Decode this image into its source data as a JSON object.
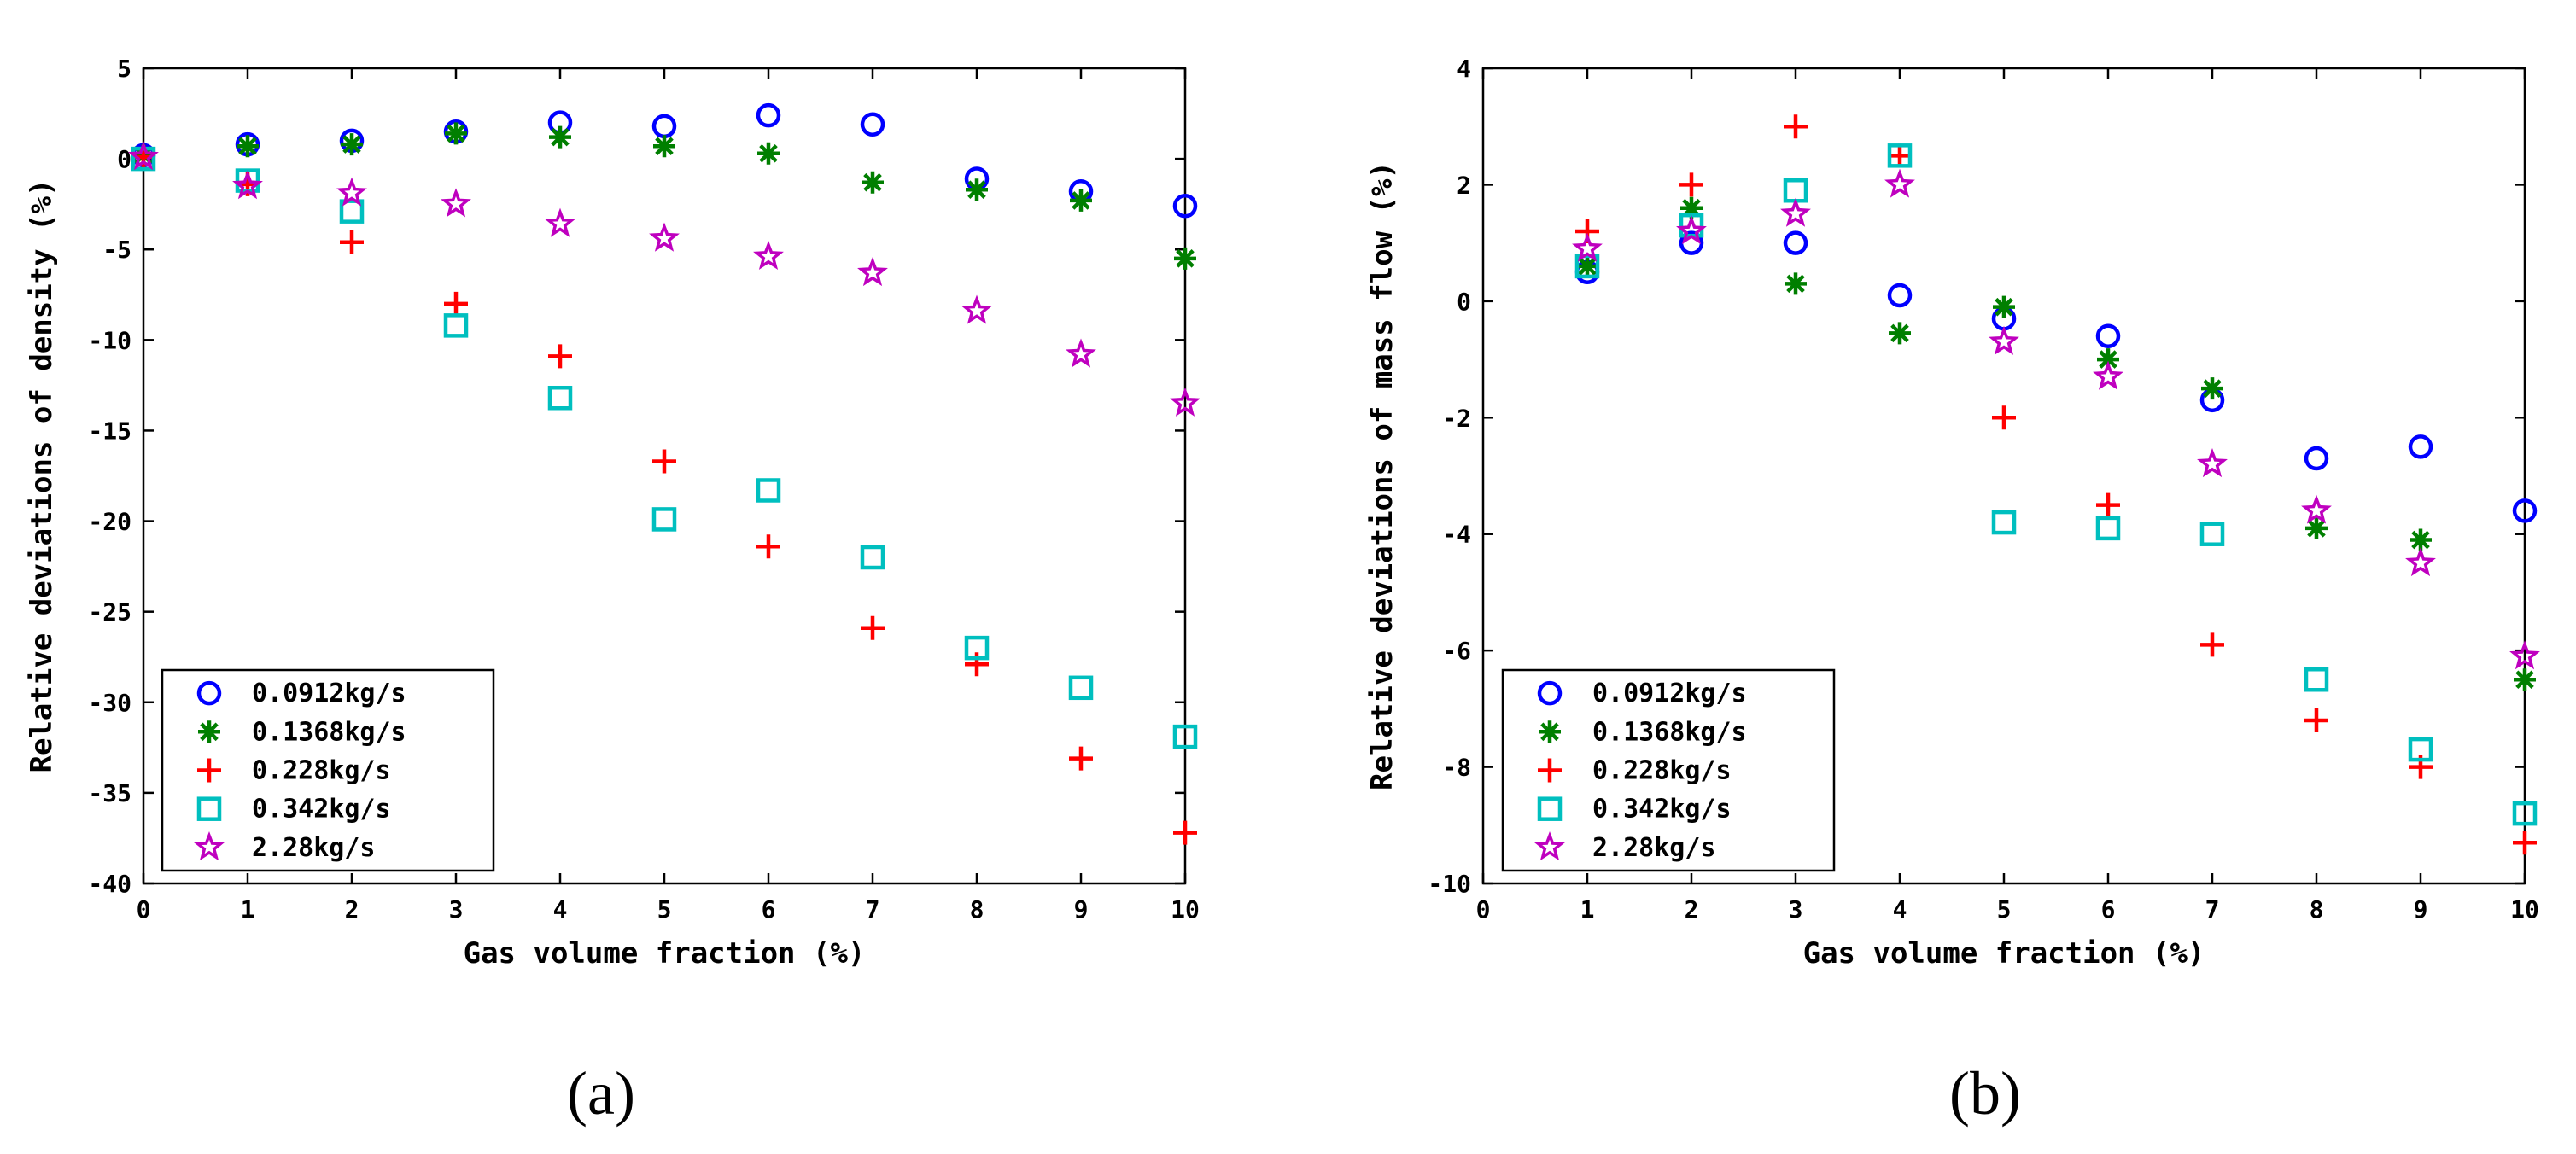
{
  "chart_data": [
    {
      "type": "scatter",
      "panel_label": "(a)",
      "title": "",
      "xlabel": "Gas volume fraction (%)",
      "ylabel": "Relative deviations of density (%)",
      "xlim": [
        0,
        10
      ],
      "ylim": [
        -40,
        5
      ],
      "xticks": [
        0,
        1,
        2,
        3,
        4,
        5,
        6,
        7,
        8,
        9,
        10
      ],
      "yticks": [
        -40,
        -35,
        -30,
        -25,
        -20,
        -15,
        -10,
        -5,
        0,
        5
      ],
      "grid": false,
      "legend_position": "bottom-left",
      "series": [
        {
          "name": "0.0912kg/s",
          "marker": "circle",
          "color": "#0000ff",
          "x": [
            0,
            1,
            2,
            3,
            4,
            5,
            6,
            7,
            8,
            9,
            10
          ],
          "y": [
            0.2,
            0.8,
            1.0,
            1.5,
            2.0,
            1.8,
            2.4,
            1.9,
            -1.1,
            -1.8,
            -2.6
          ]
        },
        {
          "name": "0.1368kg/s",
          "marker": "asterisk",
          "color": "#007f00",
          "x": [
            0,
            1,
            2,
            3,
            4,
            5,
            6,
            7,
            8,
            9,
            10
          ],
          "y": [
            0.2,
            0.7,
            0.8,
            1.4,
            1.2,
            0.7,
            0.3,
            -1.3,
            -1.7,
            -2.3,
            -5.5
          ]
        },
        {
          "name": "0.228kg/s",
          "marker": "plus",
          "color": "#ff0000",
          "x": [
            0,
            1,
            2,
            3,
            4,
            5,
            6,
            7,
            8,
            9,
            10
          ],
          "y": [
            0.1,
            -1.4,
            -4.6,
            -8.0,
            -10.9,
            -16.7,
            -21.4,
            -25.9,
            -27.9,
            -33.1,
            -37.2
          ]
        },
        {
          "name": "0.342kg/s",
          "marker": "square",
          "color": "#00bfbf",
          "x": [
            0,
            1,
            2,
            3,
            4,
            5,
            6,
            7,
            8,
            9,
            10
          ],
          "y": [
            0.0,
            -1.2,
            -2.9,
            -9.2,
            -13.2,
            -19.9,
            -18.3,
            -22.0,
            -27.0,
            -29.2,
            -31.9
          ]
        },
        {
          "name": "2.28kg/s",
          "marker": "pentagram",
          "color": "#bf00bf",
          "x": [
            0,
            1,
            2,
            3,
            4,
            5,
            6,
            7,
            8,
            9,
            10
          ],
          "y": [
            0.1,
            -1.5,
            -1.9,
            -2.5,
            -3.6,
            -4.4,
            -5.4,
            -6.3,
            -8.4,
            -10.8,
            -13.5
          ]
        }
      ]
    },
    {
      "type": "scatter",
      "panel_label": "(b)",
      "title": "",
      "xlabel": "Gas volume fraction (%)",
      "ylabel": "Relative deviations of mass flow (%)",
      "xlim": [
        0,
        10
      ],
      "ylim": [
        -10,
        4
      ],
      "xticks": [
        0,
        1,
        2,
        3,
        4,
        5,
        6,
        7,
        8,
        9,
        10
      ],
      "yticks": [
        -10,
        -8,
        -6,
        -4,
        -2,
        0,
        2,
        4
      ],
      "grid": false,
      "legend_position": "bottom-left",
      "series": [
        {
          "name": "0.0912kg/s",
          "marker": "circle",
          "color": "#0000ff",
          "x": [
            1,
            2,
            3,
            4,
            5,
            6,
            7,
            8,
            9,
            10
          ],
          "y": [
            0.5,
            1.0,
            1.0,
            0.1,
            -0.3,
            -0.6,
            -1.7,
            -2.7,
            -2.5,
            -3.6
          ]
        },
        {
          "name": "0.1368kg/s",
          "marker": "asterisk",
          "color": "#007f00",
          "x": [
            1,
            2,
            3,
            4,
            5,
            6,
            7,
            8,
            9,
            10
          ],
          "y": [
            0.6,
            1.6,
            0.3,
            -0.55,
            -0.1,
            -1.0,
            -1.5,
            -3.9,
            -4.1,
            -6.5
          ]
        },
        {
          "name": "0.228kg/s",
          "marker": "plus",
          "color": "#ff0000",
          "x": [
            1,
            2,
            3,
            4,
            5,
            6,
            7,
            8,
            9,
            10
          ],
          "y": [
            1.2,
            2.0,
            3.0,
            2.5,
            -2.0,
            -3.5,
            -5.9,
            -7.2,
            -8.0,
            -9.3
          ]
        },
        {
          "name": "0.342kg/s",
          "marker": "square",
          "color": "#00bfbf",
          "x": [
            1,
            2,
            3,
            4,
            5,
            6,
            7,
            8,
            9,
            10
          ],
          "y": [
            0.6,
            1.3,
            1.9,
            2.5,
            -3.8,
            -3.9,
            -4.0,
            -6.5,
            -7.7,
            -8.8
          ]
        },
        {
          "name": "2.28kg/s",
          "marker": "pentagram",
          "color": "#bf00bf",
          "x": [
            1,
            2,
            3,
            4,
            5,
            6,
            7,
            8,
            9,
            10
          ],
          "y": [
            0.9,
            1.2,
            1.5,
            2.0,
            -0.7,
            -1.3,
            -2.8,
            -3.6,
            -4.5,
            -6.1
          ]
        }
      ]
    }
  ]
}
